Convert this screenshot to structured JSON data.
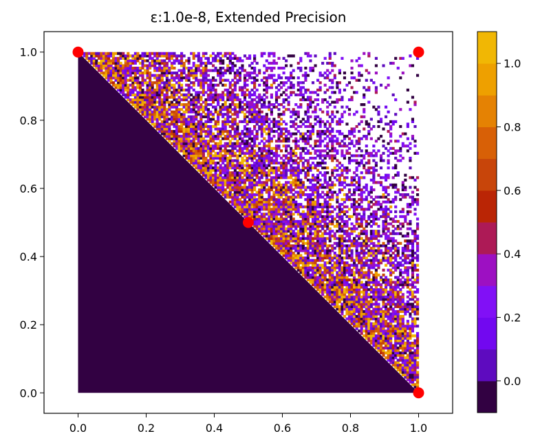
{
  "chart_data": {
    "type": "heatmap",
    "subtype": "filled-contour",
    "title": "ε:1.0e-8, Extended Precision",
    "xlabel": "",
    "ylabel": "",
    "xlim": [
      -0.1,
      1.1
    ],
    "ylim": [
      -0.06,
      1.06
    ],
    "x_ticks": [
      0.0,
      0.2,
      0.4,
      0.6,
      0.8,
      1.0
    ],
    "x_tick_labels": [
      "0.0",
      "0.2",
      "0.4",
      "0.6",
      "0.8",
      "1.0"
    ],
    "y_ticks": [
      0.0,
      0.2,
      0.4,
      0.6,
      0.8,
      1.0
    ],
    "y_tick_labels": [
      "0.0",
      "0.2",
      "0.4",
      "0.6",
      "0.8",
      "1.0"
    ],
    "grid": false,
    "domain": "unit square [0,1]x[0,1]",
    "lower_triangle": {
      "region": "x + y <= 1",
      "value": -0.05
    },
    "upper_triangle": {
      "region": "x + y > 1",
      "description": "scattered noisy values between -0.1 and 1.1, densest near the diagonal, sparse toward (1,1)"
    },
    "points": [
      {
        "x": 0.0,
        "y": 1.0,
        "color": "#ff0000"
      },
      {
        "x": 1.0,
        "y": 1.0,
        "color": "#ff0000"
      },
      {
        "x": 0.5,
        "y": 0.5,
        "color": "#ff0000"
      },
      {
        "x": 1.0,
        "y": 0.0,
        "color": "#ff0000"
      }
    ],
    "colorbar": {
      "levels": [
        -0.1,
        0.0,
        0.1,
        0.2,
        0.3,
        0.4,
        0.5,
        0.6,
        0.7,
        0.8,
        0.9,
        1.0,
        1.1
      ],
      "colors": [
        "#320142",
        "#5e0bbf",
        "#7208f0",
        "#8110f6",
        "#9d10c2",
        "#ad1a56",
        "#ba2505",
        "#c8450a",
        "#d86006",
        "#e58203",
        "#eea000",
        "#f1b704",
        "#fce400"
      ],
      "ticks": [
        0.0,
        0.2,
        0.4,
        0.6,
        0.8,
        1.0
      ],
      "tick_labels": [
        "0.0",
        "0.2",
        "0.4",
        "0.6",
        "0.8",
        "1.0"
      ],
      "position": "right"
    }
  }
}
